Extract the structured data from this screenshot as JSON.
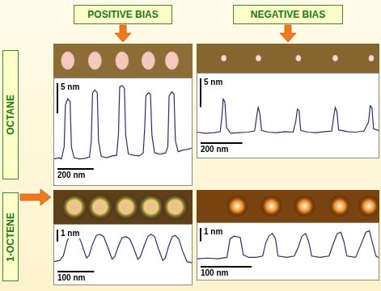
{
  "column_headers": [
    "POSITIVE BIAS",
    "NEGATIVE BIAS"
  ],
  "row_headers": [
    "OCTANE",
    "1-OCTENE"
  ],
  "chart_data": [
    {
      "type": "line",
      "color": "#2c2c7a",
      "line_style": "solid",
      "grid": false,
      "tick_labels": false,
      "xlim": [
        0,
        760
      ],
      "ylim": [
        0,
        14
      ],
      "x": [
        0,
        25,
        40,
        55,
        62,
        75,
        88,
        95,
        110,
        140,
        170,
        195,
        205,
        212,
        225,
        238,
        245,
        260,
        290,
        320,
        345,
        355,
        362,
        375,
        388,
        395,
        410,
        440,
        470,
        492,
        500,
        507,
        520,
        532,
        540,
        555,
        585,
        615,
        628,
        635,
        650,
        662,
        670,
        685,
        715,
        740,
        760
      ],
      "values": [
        1.0,
        1.2,
        1.0,
        3,
        10,
        11,
        10.5,
        3,
        1.2,
        1.0,
        1.1,
        1.3,
        4,
        12,
        12.5,
        12,
        4,
        1.4,
        1.2,
        1.5,
        1.6,
        5,
        13,
        13.2,
        12.8,
        5,
        1.8,
        1.6,
        1.5,
        2,
        6,
        11.5,
        12,
        11.8,
        5,
        2,
        1.8,
        2,
        3,
        11.5,
        12.2,
        11.8,
        4,
        2.2,
        2.5,
        2.6,
        2.8
      ],
      "spots": [
        75,
        225,
        375,
        520,
        650
      ],
      "scale_bar_x": {
        "value": 200,
        "label": "200 nm"
      },
      "scale_bar_y": {
        "value": 5,
        "label": "5 nm"
      }
    },
    {
      "type": "line",
      "color": "#2c2c7a",
      "line_style": "solid",
      "grid": false,
      "tick_labels": false,
      "xlim": [
        0,
        870
      ],
      "ylim": [
        0,
        11
      ],
      "x": [
        0,
        40,
        80,
        110,
        118,
        124,
        132,
        140,
        160,
        200,
        240,
        275,
        285,
        292,
        300,
        308,
        340,
        380,
        420,
        460,
        472,
        480,
        488,
        496,
        530,
        570,
        610,
        645,
        655,
        662,
        670,
        678,
        720,
        760,
        800,
        822,
        830,
        838,
        846,
        870
      ],
      "values": [
        1.2,
        1.0,
        1.1,
        1.3,
        4,
        7,
        6.5,
        2,
        1.0,
        1.1,
        1.2,
        1.4,
        4,
        5.5,
        4.5,
        1.5,
        1.2,
        1.1,
        1.3,
        1.2,
        3,
        5.2,
        5,
        1.5,
        1.2,
        1.1,
        1.3,
        1.4,
        4,
        5.5,
        4.8,
        1.6,
        1.3,
        1.2,
        1.4,
        3,
        5.8,
        5.5,
        1.8,
        1.5
      ],
      "spots": [
        127,
        293,
        485,
        662,
        835
      ],
      "scale_bar_x": {
        "value": 200,
        "label": "200 nm"
      },
      "scale_bar_y": {
        "value": 5,
        "label": "5 nm"
      }
    },
    {
      "type": "line",
      "color": "#2c2c7a",
      "line_style": "solid",
      "grid": false,
      "tick_labels": false,
      "xlim": [
        0,
        375
      ],
      "ylim": [
        0,
        3.4
      ],
      "x": [
        0,
        15,
        25,
        35,
        45,
        55,
        65,
        75,
        88,
        95,
        105,
        115,
        125,
        135,
        145,
        158,
        165,
        175,
        185,
        196,
        206,
        216,
        228,
        235,
        245,
        255,
        264,
        274,
        284,
        296,
        303,
        312,
        322,
        330,
        340,
        350,
        362,
        375
      ],
      "values": [
        0.5,
        0.6,
        1.0,
        2.2,
        2.9,
        3.0,
        2.8,
        2.0,
        0.8,
        1.0,
        2.0,
        2.7,
        2.8,
        2.6,
        1.8,
        0.7,
        0.9,
        1.8,
        2.5,
        2.6,
        2.4,
        1.7,
        0.7,
        0.9,
        1.8,
        2.6,
        2.8,
        2.6,
        1.6,
        0.6,
        0.8,
        1.8,
        2.6,
        2.7,
        2.4,
        1.4,
        0.5,
        0.4
      ],
      "spots": [
        55,
        125,
        196,
        264,
        330
      ],
      "scale_bar_x": {
        "value": 100,
        "label": "100 nm"
      },
      "scale_bar_y": {
        "value": 1,
        "label": "1 nm"
      }
    },
    {
      "type": "line",
      "color": "#2c2c7a",
      "line_style": "solid",
      "grid": false,
      "tick_labels": false,
      "xlim": [
        0,
        355
      ],
      "ylim": [
        0,
        2.8
      ],
      "x": [
        0,
        20,
        40,
        58,
        64,
        72,
        84,
        90,
        100,
        115,
        128,
        134,
        140,
        147,
        153,
        158,
        175,
        190,
        198,
        205,
        212,
        218,
        224,
        240,
        258,
        266,
        274,
        281,
        287,
        293,
        310,
        322,
        330,
        337,
        343,
        350,
        355
      ],
      "values": [
        0.3,
        0.35,
        0.3,
        0.4,
        1.8,
        2.0,
        1.9,
        0.6,
        0.4,
        0.4,
        0.5,
        1.5,
        2.0,
        2.2,
        1.8,
        0.5,
        0.4,
        0.5,
        1.2,
        2.0,
        2.2,
        1.6,
        0.5,
        0.4,
        0.5,
        1.4,
        2.2,
        2.3,
        1.6,
        0.5,
        0.4,
        1.5,
        2.3,
        2.4,
        1.5,
        0.5,
        0.4
      ],
      "spots": [
        78,
        145,
        210,
        279,
        336
      ],
      "scale_bar_x": {
        "value": 100,
        "label": "100 nm"
      },
      "scale_bar_y": {
        "value": 1,
        "label": "1 nm"
      }
    }
  ]
}
